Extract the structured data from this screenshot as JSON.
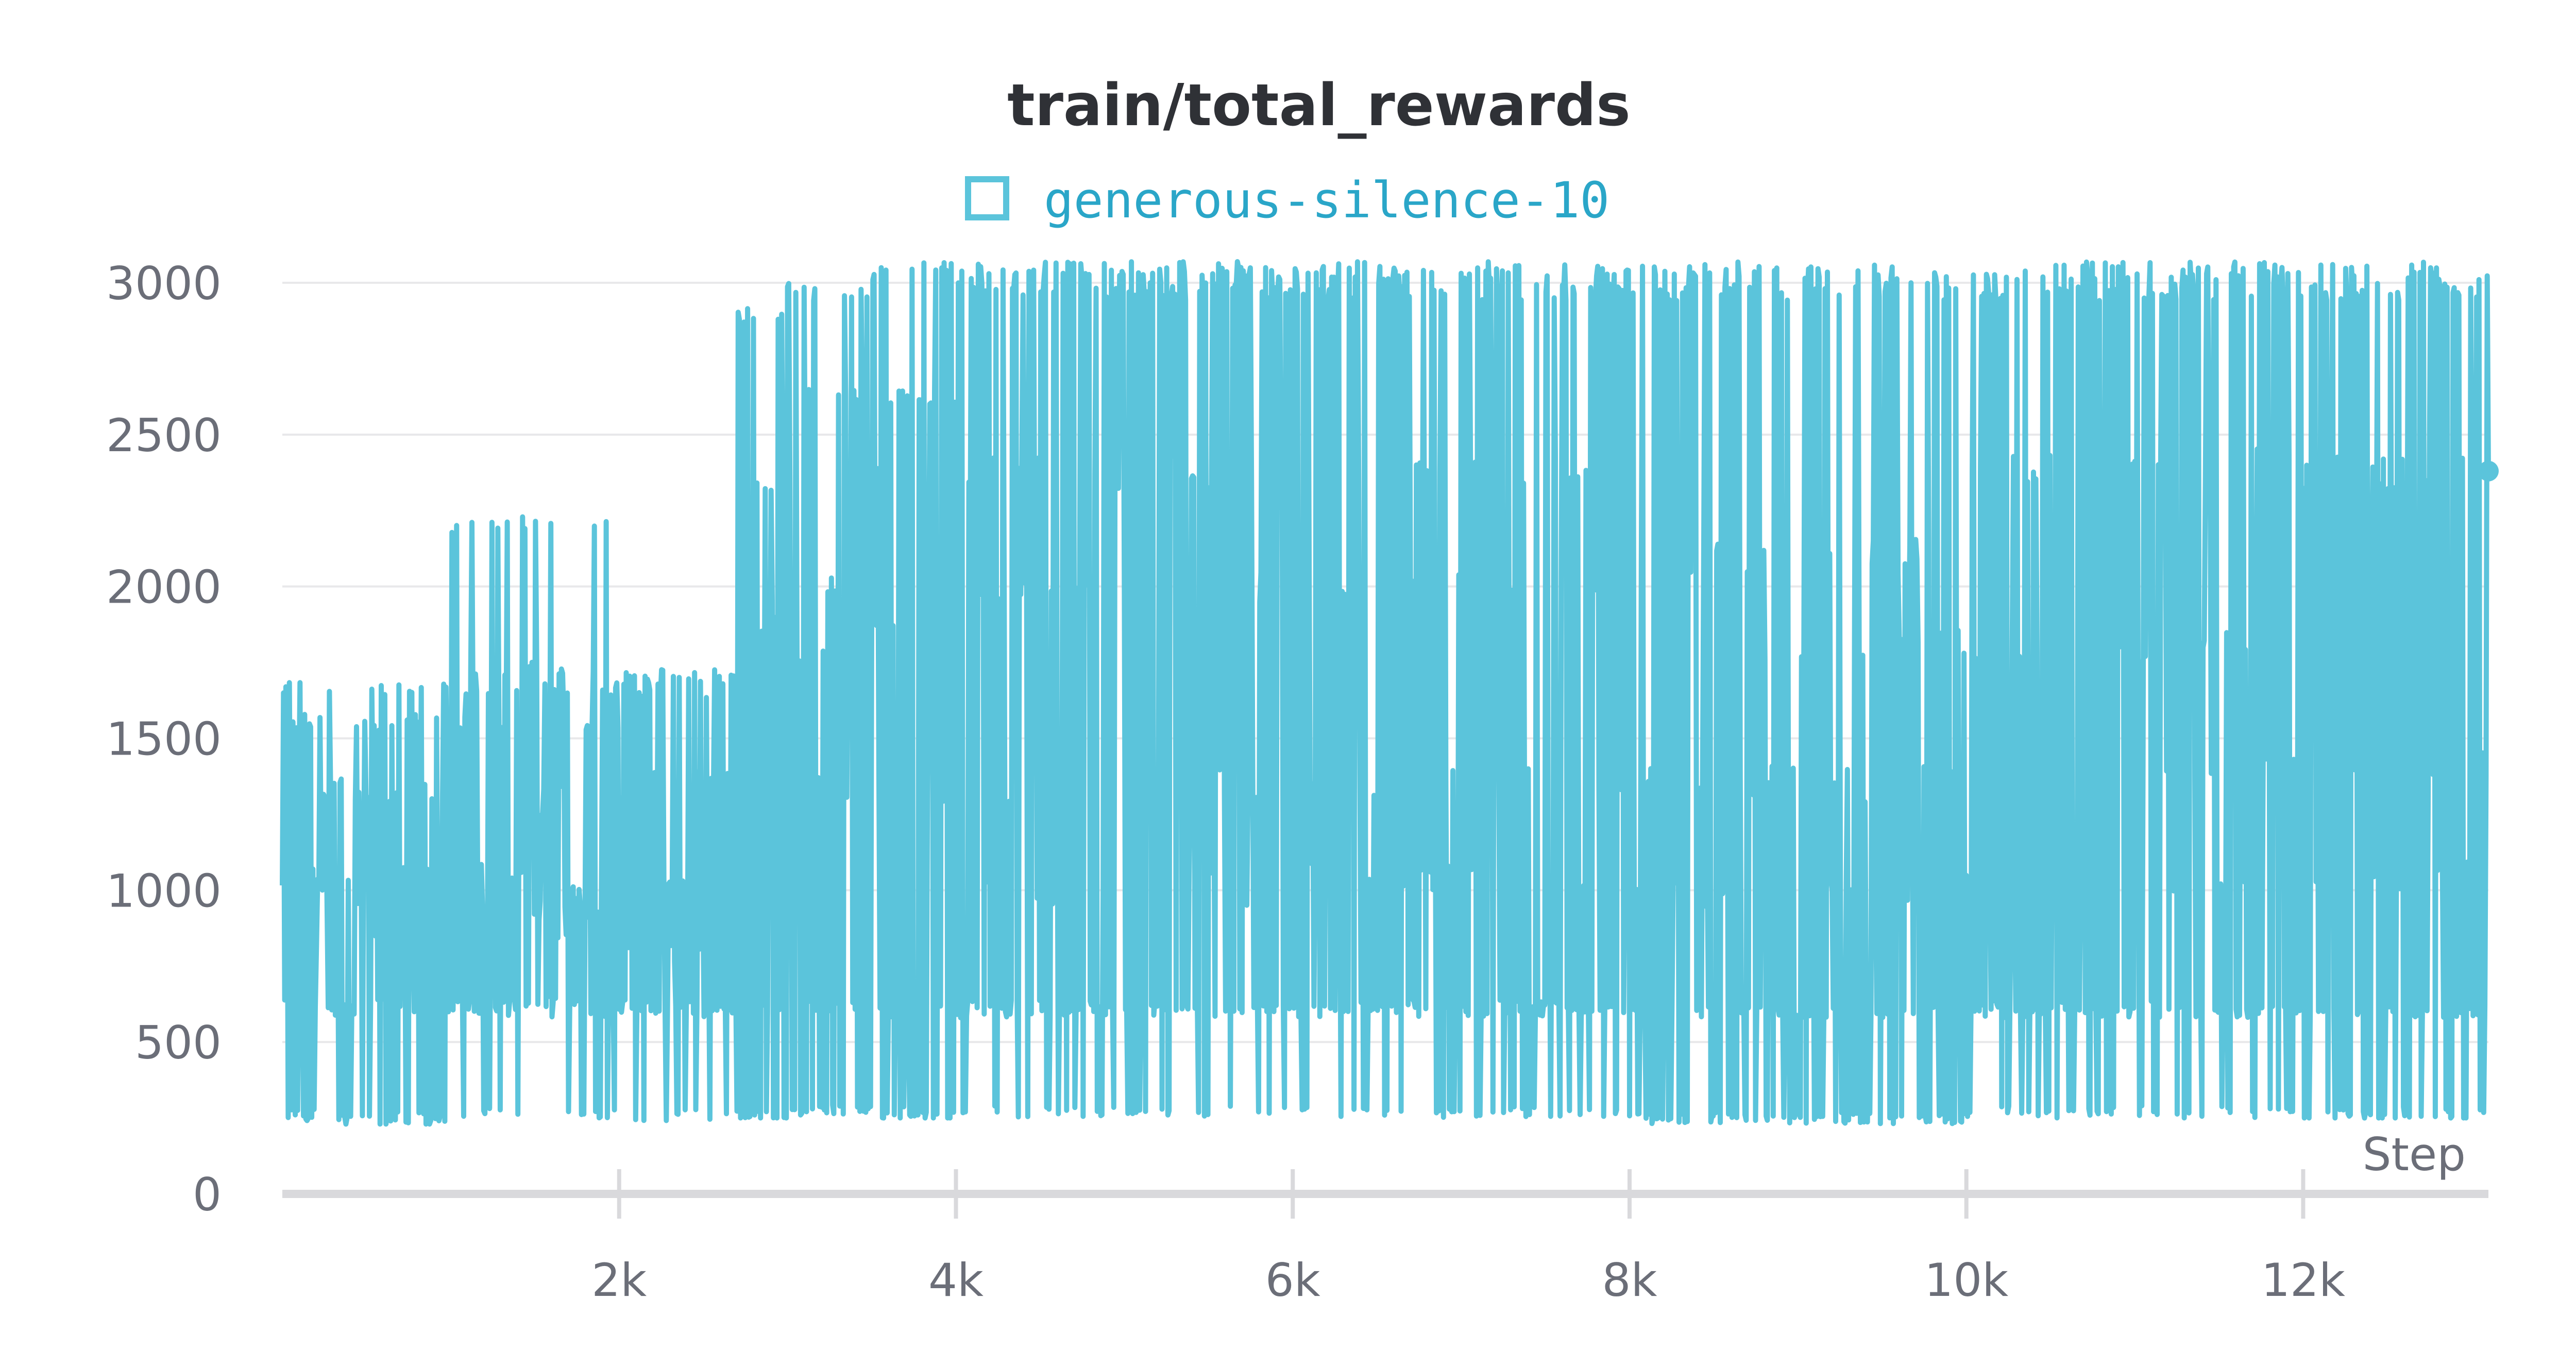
{
  "colors": {
    "series": "#5bc4db",
    "title": "#2f3136",
    "legend_text": "#2aa6c8",
    "tick": "#6b6e78",
    "grid": "#e8e8ea",
    "axis": "#d9d9dc"
  },
  "chart_data": {
    "type": "line",
    "title": "train/total_rewards",
    "xlabel": "Step",
    "ylabel": "",
    "legend_position": "top-center",
    "grid": true,
    "xlim": [
      0,
      13100
    ],
    "ylim": [
      0,
      3050
    ],
    "x_ticks": [
      2000,
      4000,
      6000,
      8000,
      10000,
      12000
    ],
    "x_tick_labels": [
      "2k",
      "4k",
      "6k",
      "8k",
      "10k",
      "12k"
    ],
    "y_ticks": [
      0,
      500,
      1000,
      1500,
      2000,
      2500,
      3000
    ],
    "y_tick_labels": [
      "0",
      "500",
      "1000",
      "1500",
      "2000",
      "2500",
      "3000"
    ],
    "series": [
      {
        "name": "generous-silence-10",
        "color": "#5bc4db",
        "last_point": {
          "x": 13100,
          "y": 2380
        },
        "segments": [
          {
            "x_start": 0,
            "x_end": 1000,
            "min": 230,
            "max": 1690,
            "low_values": [
              240,
              260,
              600,
              630
            ],
            "mid_values": [
              800,
              1000,
              1050,
              1330
            ],
            "peaks": [
              1330,
              1580,
              1690
            ]
          },
          {
            "x_start": 1000,
            "x_end": 2000,
            "min": 250,
            "max": 2230,
            "low_values": [
              600,
              620,
              640
            ],
            "mid_values": [
              900,
              1000,
              1050,
              1300
            ],
            "peaks": [
              1570,
              1700,
              1760,
              2230
            ]
          },
          {
            "x_start": 2000,
            "x_end": 2700,
            "min": 240,
            "max": 1730,
            "low_values": [
              600,
              620
            ],
            "mid_values": [
              800,
              1000,
              1340
            ],
            "peaks": [
              1690,
              1730
            ]
          },
          {
            "x_start": 2700,
            "x_end": 3000,
            "min": 250,
            "max": 2920,
            "low_values": [
              250,
              620
            ],
            "mid_values": [
              1300,
              1700,
              1900
            ],
            "peaks": [
              2360,
              2920
            ]
          },
          {
            "x_start": 3000,
            "x_end": 3500,
            "min": 260,
            "max": 3000,
            "low_values": [
              260,
              620
            ],
            "mid_values": [
              1350,
              1800,
              2000
            ],
            "peaks": [
              2360,
              2660,
              3000
            ]
          },
          {
            "x_start": 3500,
            "x_end": 4000,
            "min": 250,
            "max": 3070,
            "low_values": [
              250,
              600
            ],
            "mid_values": [
              1350,
              1900,
              2380
            ],
            "peaks": [
              2650,
              3070
            ]
          },
          {
            "x_start": 4000,
            "x_end": 6000,
            "min": 250,
            "max": 3070,
            "low_values": [
              600,
              620
            ],
            "mid_values": [
              1000,
              1350,
              2000,
              2380
            ],
            "peaks": [
              3000,
              3070
            ]
          },
          {
            "x_start": 6000,
            "x_end": 8000,
            "min": 250,
            "max": 3070,
            "low_values": [
              600,
              620
            ],
            "mid_values": [
              1050,
              1350,
              2000,
              2400
            ],
            "peaks": [
              3000,
              3070
            ]
          },
          {
            "x_start": 8000,
            "x_end": 10000,
            "min": 230,
            "max": 3070,
            "low_values": [
              250,
              600
            ],
            "mid_values": [
              1000,
              1350,
              1800,
              2100
            ],
            "peaks": [
              3000,
              3070
            ]
          },
          {
            "x_start": 10000,
            "x_end": 12000,
            "min": 250,
            "max": 3070,
            "low_values": [
              600,
              620
            ],
            "mid_values": [
              1050,
              1400,
              1800,
              2400
            ],
            "peaks": [
              3000,
              3070
            ]
          },
          {
            "x_start": 12000,
            "x_end": 13100,
            "min": 250,
            "max": 3070,
            "low_values": [
              250,
              600
            ],
            "mid_values": [
              1050,
              1400,
              1900,
              2380
            ],
            "peaks": [
              3000,
              3070
            ]
          }
        ]
      }
    ]
  }
}
